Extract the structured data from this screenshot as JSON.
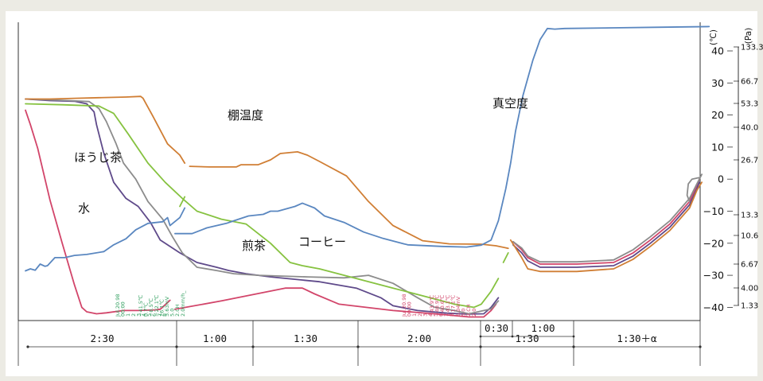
{
  "chart_data": {
    "type": "line",
    "title": "",
    "units": {
      "temperature": "(℃)",
      "pressure": "(Pa)"
    },
    "y_temperature": {
      "ticks": [
        "40",
        "30",
        "20",
        "10",
        "0",
        "−10",
        "−20",
        "−30",
        "−40"
      ],
      "ylim": [
        -45,
        47
      ]
    },
    "y_pressure": {
      "ticks": [
        "133.3",
        "66.7",
        "53.3",
        "40.0",
        "26.7",
        "13.3",
        "10.6",
        "6.67",
        "4.00",
        "1.33"
      ]
    },
    "x_segments": {
      "main": [
        "2:30",
        "1:00",
        "1:30",
        "2:00",
        "1:30",
        "1:30＋α"
      ],
      "sub": [
        "0:30",
        "1:00"
      ]
    },
    "series": [
      {
        "name": "水",
        "color": "#d2456a",
        "x_unit": "elapsed minutes",
        "points": [
          [
            0,
            21.5
          ],
          [
            4,
            17
          ],
          [
            10,
            9.6
          ],
          [
            20,
            -6.5
          ],
          [
            30,
            -20
          ],
          [
            40,
            -33
          ],
          [
            46,
            -40
          ],
          [
            50,
            -41.4
          ],
          [
            58,
            -42
          ],
          [
            66,
            -41.7
          ],
          [
            80,
            -41
          ],
          [
            92,
            -41
          ],
          [
            106,
            -40.8
          ],
          [
            110,
            -40.6
          ],
          [
            118,
            -37.8
          ],
          [
            null,
            null
          ],
          [
            122,
            -40.6
          ],
          [
            160,
            -38
          ],
          [
            212,
            -34
          ],
          [
            226,
            -34
          ],
          [
            236,
            -35.8
          ],
          [
            256,
            -39
          ],
          [
            300,
            -41
          ],
          [
            334,
            -42
          ],
          [
            362,
            -43
          ],
          [
            374,
            -43
          ],
          [
            380,
            -41
          ],
          [
            384,
            -39
          ],
          [
            null,
            null
          ],
          [
            398,
            -19.5
          ],
          [
            405,
            -22
          ],
          [
            410,
            -24.5
          ],
          [
            420,
            -26.5
          ],
          [
            450,
            -26.5
          ],
          [
            480,
            -26
          ],
          [
            496,
            -23
          ],
          [
            510,
            -19
          ],
          [
            526,
            -14
          ],
          [
            542,
            -7
          ],
          [
            548,
            -2
          ],
          [
            550,
            0
          ]
        ]
      },
      {
        "name": "ほうじ茶",
        "color": "#5f4a8a",
        "x_unit": "elapsed minutes",
        "points": [
          [
            0,
            25
          ],
          [
            20,
            24.5
          ],
          [
            40,
            24.3
          ],
          [
            50,
            23.5
          ],
          [
            56,
            21
          ],
          [
            58,
            17
          ],
          [
            64,
            8
          ],
          [
            72,
            -1
          ],
          [
            82,
            -6
          ],
          [
            92,
            -8.5
          ],
          [
            102,
            -13.5
          ],
          [
            110,
            -19
          ],
          [
            126,
            -23
          ],
          [
            140,
            -26
          ],
          [
            156,
            -27.5
          ],
          [
            166,
            -28.5
          ],
          [
            180,
            -29.5
          ],
          [
            200,
            -30.5
          ],
          [
            240,
            -32
          ],
          [
            270,
            -34
          ],
          [
            290,
            -37
          ],
          [
            300,
            -39.5
          ],
          [
            320,
            -41
          ],
          [
            344,
            -41.8
          ],
          [
            360,
            -42.1
          ],
          [
            374,
            -42
          ],
          [
            380,
            -40
          ],
          [
            386,
            -37
          ],
          [
            null,
            null
          ],
          [
            398,
            -20.5
          ],
          [
            405,
            -23
          ],
          [
            410,
            -25.5
          ],
          [
            420,
            -27.5
          ],
          [
            450,
            -27.5
          ],
          [
            480,
            -27
          ],
          [
            496,
            -24
          ],
          [
            510,
            -20
          ],
          [
            526,
            -15
          ],
          [
            542,
            -8
          ],
          [
            548,
            -3
          ],
          [
            550,
            -1
          ]
        ]
      },
      {
        "name": "煎茶",
        "color": "#8c8c8c",
        "x_unit": "elapsed minutes",
        "points": [
          [
            0,
            25
          ],
          [
            30,
            24.6
          ],
          [
            52,
            24.2
          ],
          [
            60,
            22
          ],
          [
            66,
            18
          ],
          [
            74,
            11
          ],
          [
            80,
            5
          ],
          [
            90,
            0
          ],
          [
            100,
            -7
          ],
          [
            112,
            -12.5
          ],
          [
            120,
            -18
          ],
          [
            128,
            -23
          ],
          [
            140,
            -27.5
          ],
          [
            156,
            -28.5
          ],
          [
            170,
            -29.5
          ],
          [
            190,
            -30
          ],
          [
            230,
            -30.5
          ],
          [
            260,
            -30.8
          ],
          [
            280,
            -30
          ],
          [
            300,
            -32.5
          ],
          [
            320,
            -37
          ],
          [
            334,
            -40
          ],
          [
            350,
            -41
          ],
          [
            362,
            -42
          ],
          [
            380,
            -40.5
          ],
          [
            386,
            -38
          ],
          [
            null,
            null
          ],
          [
            398,
            -19.5
          ],
          [
            405,
            -21.5
          ],
          [
            410,
            -24
          ],
          [
            420,
            -25.8
          ],
          [
            450,
            -25.8
          ],
          [
            480,
            -25.2
          ],
          [
            496,
            -22
          ],
          [
            510,
            -18
          ],
          [
            526,
            -13
          ],
          [
            542,
            -6
          ],
          [
            548,
            -1.5
          ],
          [
            552,
            1.5
          ],
          [
            null,
            null
          ],
          [
            542,
            -7
          ],
          [
            540,
            -5
          ],
          [
            541,
            -1.5
          ],
          [
            544,
            0
          ],
          [
            550,
            0.5
          ]
        ]
      },
      {
        "name": "コーヒー",
        "color": "#86c240",
        "x_unit": "elapsed minutes",
        "points": [
          [
            0,
            23.5
          ],
          [
            30,
            23.2
          ],
          [
            60,
            22.8
          ],
          [
            72,
            20.5
          ],
          [
            84,
            14
          ],
          [
            100,
            5
          ],
          [
            114,
            -1
          ],
          [
            128,
            -6
          ],
          [
            140,
            -10
          ],
          [
            160,
            -12.5
          ],
          [
            180,
            -14
          ],
          [
            200,
            -20
          ],
          [
            216,
            -26
          ],
          [
            226,
            -27
          ],
          [
            240,
            -28
          ],
          [
            270,
            -31
          ],
          [
            300,
            -34
          ],
          [
            330,
            -37
          ],
          [
            350,
            -39
          ],
          [
            366,
            -40
          ],
          [
            372,
            -39
          ],
          [
            380,
            -35
          ],
          [
            386,
            -31
          ],
          [
            null,
            null
          ],
          [
            390,
            -26
          ],
          [
            394,
            -23
          ],
          [
            null,
            null
          ],
          [
            126,
            -8.5
          ],
          [
            130,
            -5.5
          ]
        ]
      },
      {
        "name": "棚温度",
        "color": "#d07e34",
        "x_unit": "elapsed minutes",
        "points": [
          [
            0,
            25
          ],
          [
            20,
            25
          ],
          [
            40,
            25.2
          ],
          [
            60,
            25.4
          ],
          [
            82,
            25.6
          ],
          [
            94,
            25.8
          ],
          [
            96,
            25.2
          ],
          [
            104,
            19.6
          ],
          [
            116,
            11
          ],
          [
            126,
            7.5
          ],
          [
            130,
            5
          ],
          [
            null,
            null
          ],
          [
            134,
            4
          ],
          [
            150,
            3.8
          ],
          [
            172,
            3.8
          ],
          [
            176,
            4.5
          ],
          [
            190,
            4.5
          ],
          [
            200,
            6
          ],
          [
            208,
            8
          ],
          [
            222,
            8.5
          ],
          [
            230,
            7.5
          ],
          [
            240,
            5.5
          ],
          [
            262,
            1
          ],
          [
            280,
            -7
          ],
          [
            300,
            -14.5
          ],
          [
            324,
            -19.2
          ],
          [
            346,
            -20.2
          ],
          [
            372,
            -20.3
          ],
          [
            384,
            -20.8
          ],
          [
            394,
            -21.6
          ],
          [
            null,
            null
          ],
          [
            396,
            -19
          ],
          [
            405,
            -24.5
          ],
          [
            410,
            -28
          ],
          [
            420,
            -28.8
          ],
          [
            450,
            -28.8
          ],
          [
            480,
            -28
          ],
          [
            496,
            -25
          ],
          [
            510,
            -21
          ],
          [
            526,
            -16
          ],
          [
            542,
            -9
          ],
          [
            548,
            -3.5
          ],
          [
            552,
            -1
          ]
        ]
      },
      {
        "name": "真空度",
        "color": "#5a87c0",
        "x_unit": "elapsed minutes",
        "points": [
          [
            0,
            -28.6
          ],
          [
            4,
            -28
          ],
          [
            8,
            -28.4
          ],
          [
            12,
            -26.5
          ],
          [
            16,
            -27.2
          ],
          [
            18,
            -27
          ],
          [
            24,
            -24.5
          ],
          [
            32,
            -24.5
          ],
          [
            40,
            -23.8
          ],
          [
            50,
            -23.5
          ],
          [
            64,
            -22.6
          ],
          [
            72,
            -20.5
          ],
          [
            82,
            -18.6
          ],
          [
            90,
            -15.8
          ],
          [
            100,
            -13.8
          ],
          [
            112,
            -13.3
          ],
          [
            116,
            -12
          ],
          [
            118,
            -14.5
          ],
          [
            126,
            -12
          ],
          [
            130,
            -9
          ],
          [
            null,
            null
          ],
          [
            122,
            -17
          ],
          [
            136,
            -17
          ],
          [
            148,
            -15.2
          ],
          [
            164,
            -13.8
          ],
          [
            170,
            -13
          ],
          [
            182,
            -11.5
          ],
          [
            194,
            -11
          ],
          [
            200,
            -10
          ],
          [
            206,
            -10
          ],
          [
            220,
            -8.5
          ],
          [
            226,
            -7.5
          ],
          [
            236,
            -9
          ],
          [
            244,
            -11.5
          ],
          [
            260,
            -13.5
          ],
          [
            276,
            -16.5
          ],
          [
            292,
            -18.5
          ],
          [
            312,
            -20.5
          ],
          [
            340,
            -21
          ],
          [
            360,
            -21.2
          ],
          [
            372,
            -20.6
          ],
          [
            380,
            -19
          ],
          [
            386,
            -13
          ],
          [
            392,
            -3
          ],
          [
            396,
            5
          ],
          [
            400,
            15
          ],
          [
            406,
            26
          ],
          [
            414,
            37
          ],
          [
            420,
            43.5
          ],
          [
            426,
            47
          ],
          [
            432,
            46.8
          ],
          [
            440,
            47
          ],
          [
            480,
            47.2
          ],
          [
            520,
            47.4
          ],
          [
            558,
            47.6
          ]
        ]
      }
    ],
    "labels": [
      "ほうじ茶",
      "水",
      "棚温度",
      "煎茶",
      "コーヒー",
      "真空度"
    ],
    "annotations": [
      {
        "color": "#33a060",
        "lines": [
          "Jul.20.98",
          "00:00",
          "1",
          "2",
          "3",
          "4",
          "5",
          "6",
          "7",
          "8"
        ]
      },
      {
        "color": "#33a060",
        "lines": [
          "−41.5℃",
          "0.7℃",
          "−8.5℃",
          "−22.1℃",
          "26.1℃",
          "3.63mV",
          "5.0",
          "2.CH",
          "2.0mm/h_"
        ]
      },
      {
        "color": "#d2456a",
        "lines": [
          "Jul.20.98",
          "00:00",
          "1",
          "2",
          "3",
          "4",
          "5",
          "6",
          "7",
          "8"
        ]
      },
      {
        "color": "#d2456a",
        "lines": [
          "−43.9℃",
          "−40.9℃",
          "−40.6℃",
          "−43.1℃",
          "−17.1℃",
          "6.04mV",
          "5.0",
          "2.CH",
          "2.0"
        ]
      }
    ]
  }
}
